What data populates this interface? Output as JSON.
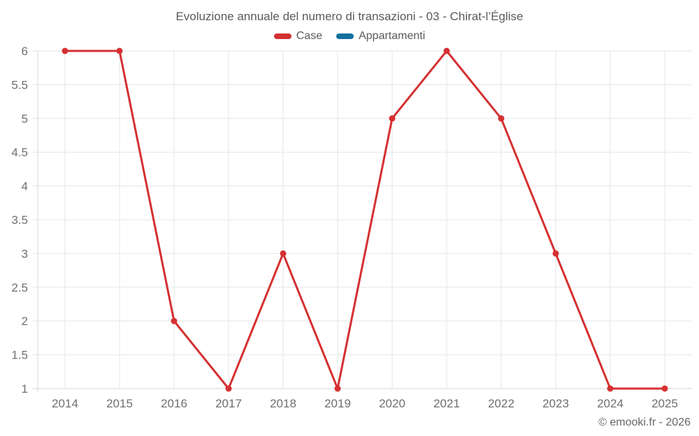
{
  "chart_data": {
    "type": "line",
    "title": "Evoluzione annuale del numero di transazioni - 03 - Chirat-l’Église",
    "categories": [
      "2014",
      "2015",
      "2016",
      "2017",
      "2018",
      "2019",
      "2020",
      "2021",
      "2022",
      "2023",
      "2024",
      "2025"
    ],
    "series": [
      {
        "name": "Case",
        "color": "#d53031",
        "values": [
          6,
          6,
          2,
          1,
          3,
          1,
          5,
          6,
          5,
          3,
          1,
          1
        ]
      },
      {
        "name": "Appartamenti",
        "color": "#126f9e",
        "values": []
      }
    ],
    "xlabel": "",
    "ylabel": "",
    "ylim": [
      1,
      6
    ],
    "yticks": [
      1,
      1.5,
      2,
      2.5,
      3,
      3.5,
      4,
      4.5,
      5,
      5.5,
      6
    ],
    "grid": true,
    "legend_position": "top"
  },
  "footer": {
    "copyright": "© emooki.fr - 2026"
  },
  "colors": {
    "grid": "#e6e6e6",
    "axis": "#d4d4d4",
    "tick_label": "#6f6f6f",
    "title": "#5a5a5a"
  }
}
